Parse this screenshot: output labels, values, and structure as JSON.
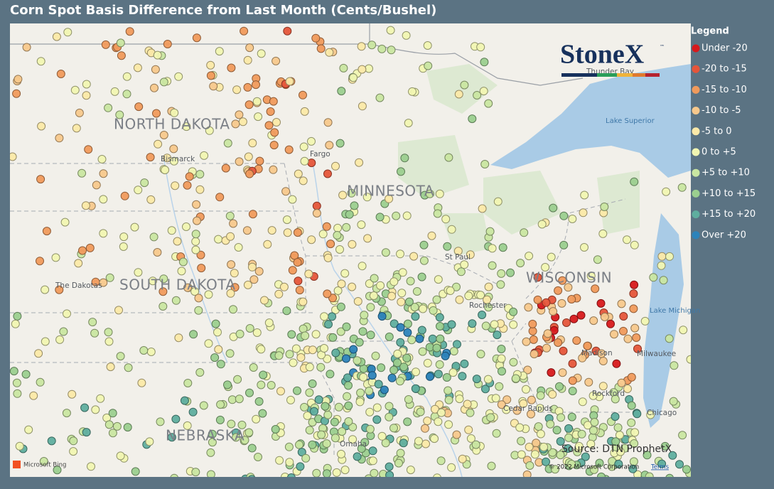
{
  "title": "Corn Spot Basis Difference from Last Month (Cents/Bushel)",
  "legend": {
    "title": "Legend",
    "items": [
      {
        "label": "Under -20",
        "color": "#d7191c"
      },
      {
        "label": "-20 to -15",
        "color": "#e5553a"
      },
      {
        "label": "-15 to -10",
        "color": "#f09a5c"
      },
      {
        "label": "-10 to -5",
        "color": "#f7c88c"
      },
      {
        "label": "-5 to 0",
        "color": "#fbe9a8"
      },
      {
        "label": "0 to +5",
        "color": "#f1f6b2"
      },
      {
        "label": "+5 to +10",
        "color": "#c9e6a1"
      },
      {
        "label": "+10 to +15",
        "color": "#9bcf8f"
      },
      {
        "label": "+15 to +20",
        "color": "#5fae9f"
      },
      {
        "label": "Over +20",
        "color": "#2c83ba"
      }
    ]
  },
  "map_labels": {
    "states": [
      "NORTH DAKOTA",
      "MINNESOTA",
      "SOUTH DAKOTA",
      "WISCONSIN",
      "NEBRASKA"
    ],
    "places": [
      "Bismarck",
      "Fargo",
      "The Dakotas",
      "St Paul",
      "Rochester",
      "Madison",
      "Milwaukee",
      "Rockford",
      "Chicago",
      "Cedar Rapids",
      "Omaha",
      "Thunder Bay"
    ],
    "lakes": [
      "Lake Superior",
      "Lake Michigan"
    ]
  },
  "logo": {
    "name": "StoneX",
    "mark": "™"
  },
  "source": "Source: DTN ProphetX",
  "attribution": {
    "provider": "Microsoft Bing",
    "copyright": "© 2022 Microsoft Corporation",
    "terms": "Terms"
  }
}
